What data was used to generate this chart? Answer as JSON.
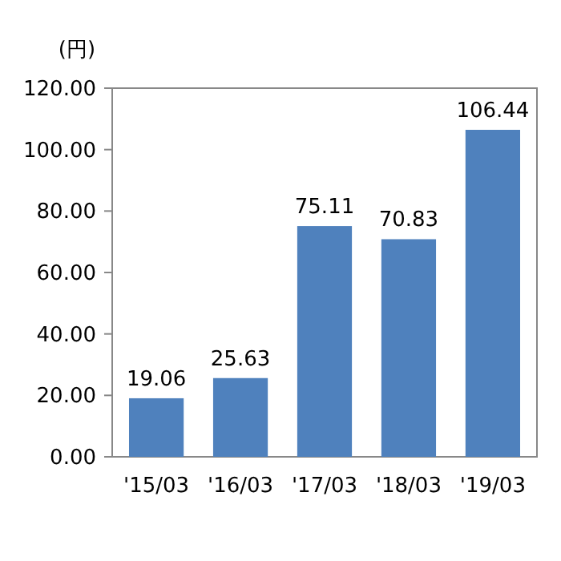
{
  "chart_data": {
    "type": "bar",
    "ylabel": "(円)",
    "categories": [
      "'15/03",
      "'16/03",
      "'17/03",
      "'18/03",
      "'19/03"
    ],
    "values": [
      19.06,
      25.63,
      75.11,
      70.83,
      106.44
    ],
    "color": "#4f81bd",
    "data_labels": true,
    "ylim": [
      0,
      120
    ],
    "yticks": [
      {
        "value": 0,
        "label": "0.00"
      },
      {
        "value": 20,
        "label": "20.00"
      },
      {
        "value": 40,
        "label": "40.00"
      },
      {
        "value": 60,
        "label": "60.00"
      },
      {
        "value": 80,
        "label": "80.00"
      },
      {
        "value": 100,
        "label": "100.00"
      },
      {
        "value": 120,
        "label": "120.00"
      }
    ],
    "grid": false
  }
}
